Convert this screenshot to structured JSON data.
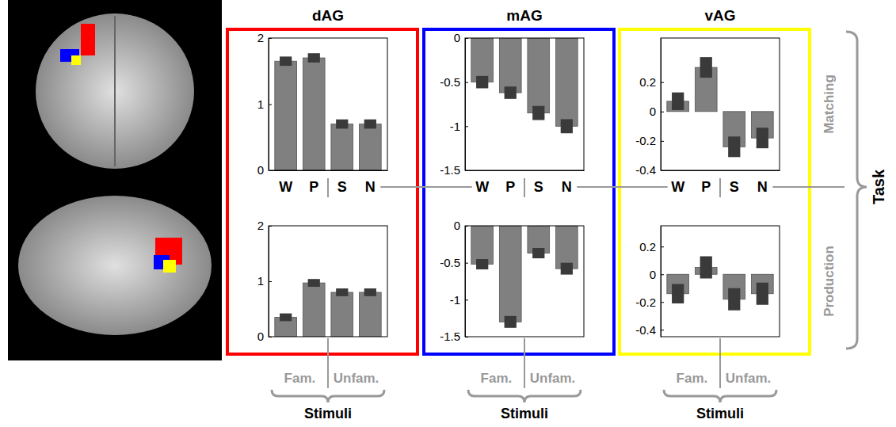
{
  "figure": {
    "panels": [
      {
        "title": "dAG",
        "color": "#ff0000"
      },
      {
        "title": "mAG",
        "color": "#0000ff"
      },
      {
        "title": "vAG",
        "color": "#ffff00"
      }
    ],
    "rows": [
      "Matching",
      "Production"
    ],
    "row_title": "Task",
    "groups": [
      "Fam.",
      "Unfam."
    ],
    "column_title": "Stimuli"
  },
  "chart_data": [
    {
      "type": "bar",
      "categories": [
        "W",
        "P",
        "S",
        "N"
      ],
      "values": [
        1.65,
        1.7,
        0.7,
        0.7
      ],
      "errors": [
        0.07,
        0.07,
        0.07,
        0.07
      ],
      "color": "#808080",
      "ylim": [
        0,
        2
      ],
      "yticks": [
        0,
        1,
        2
      ]
    },
    {
      "type": "bar",
      "categories": [
        "W",
        "P",
        "S",
        "N"
      ],
      "values": [
        -0.5,
        -0.62,
        -0.85,
        -1.0
      ],
      "errors": [
        0.07,
        0.07,
        0.08,
        0.08
      ],
      "color": "#808080",
      "ylim": [
        -1.5,
        0
      ],
      "yticks": [
        -1.5,
        -1,
        -0.5,
        0
      ]
    },
    {
      "type": "bar",
      "categories": [
        "W",
        "P",
        "S",
        "N"
      ],
      "values": [
        0.07,
        0.3,
        -0.24,
        -0.18
      ],
      "errors": [
        0.06,
        0.07,
        0.07,
        0.07
      ],
      "color": "#808080",
      "ylim": [
        -0.4,
        0.5
      ],
      "yticks": [
        -0.4,
        -0.2,
        0,
        0.2
      ]
    },
    {
      "type": "bar",
      "categories": [
        "W",
        "P",
        "S",
        "N"
      ],
      "values": [
        0.35,
        0.97,
        0.8,
        0.8
      ],
      "errors": [
        0.07,
        0.07,
        0.07,
        0.07
      ],
      "color": "#808080",
      "ylim": [
        0,
        2
      ],
      "yticks": [
        0,
        1,
        2
      ],
      "tick_labels": "y"
    },
    {
      "type": "bar",
      "categories": [
        "W",
        "P",
        "S",
        "N"
      ],
      "values": [
        -0.52,
        -1.3,
        -0.37,
        -0.58
      ],
      "errors": [
        0.07,
        0.08,
        0.07,
        0.08
      ],
      "color": "#808080",
      "ylim": [
        -1.5,
        0
      ],
      "yticks": [
        -1.5,
        -1,
        -0.5,
        0
      ],
      "tick_labels": "y"
    },
    {
      "type": "bar",
      "categories": [
        "W",
        "P",
        "S",
        "N"
      ],
      "values": [
        -0.14,
        0.05,
        -0.18,
        -0.14
      ],
      "errors": [
        0.07,
        0.08,
        0.08,
        0.08
      ],
      "color": "#808080",
      "ylim": [
        -0.45,
        0.35
      ],
      "yticks": [
        -0.4,
        -0.2,
        0,
        0.2
      ],
      "tick_labels": "y"
    }
  ]
}
